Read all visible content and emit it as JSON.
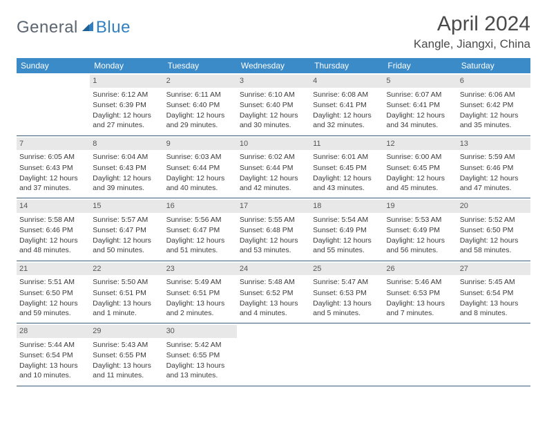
{
  "brand": {
    "part1": "General",
    "part2": "Blue"
  },
  "title": "April 2024",
  "location": "Kangle, Jiangxi, China",
  "colors": {
    "header_bg": "#3b8bc9",
    "daynum_bg": "#e8e8e8",
    "week_border": "#3b5a78",
    "text": "#3a3a3a",
    "logo_gray": "#5a6570",
    "logo_blue": "#2f7fc2"
  },
  "dow": [
    "Sunday",
    "Monday",
    "Tuesday",
    "Wednesday",
    "Thursday",
    "Friday",
    "Saturday"
  ],
  "weeks": [
    [
      {
        "n": "",
        "sr": "",
        "ss": "",
        "dl": ""
      },
      {
        "n": "1",
        "sr": "Sunrise: 6:12 AM",
        "ss": "Sunset: 6:39 PM",
        "dl": "Daylight: 12 hours and 27 minutes."
      },
      {
        "n": "2",
        "sr": "Sunrise: 6:11 AM",
        "ss": "Sunset: 6:40 PM",
        "dl": "Daylight: 12 hours and 29 minutes."
      },
      {
        "n": "3",
        "sr": "Sunrise: 6:10 AM",
        "ss": "Sunset: 6:40 PM",
        "dl": "Daylight: 12 hours and 30 minutes."
      },
      {
        "n": "4",
        "sr": "Sunrise: 6:08 AM",
        "ss": "Sunset: 6:41 PM",
        "dl": "Daylight: 12 hours and 32 minutes."
      },
      {
        "n": "5",
        "sr": "Sunrise: 6:07 AM",
        "ss": "Sunset: 6:41 PM",
        "dl": "Daylight: 12 hours and 34 minutes."
      },
      {
        "n": "6",
        "sr": "Sunrise: 6:06 AM",
        "ss": "Sunset: 6:42 PM",
        "dl": "Daylight: 12 hours and 35 minutes."
      }
    ],
    [
      {
        "n": "7",
        "sr": "Sunrise: 6:05 AM",
        "ss": "Sunset: 6:43 PM",
        "dl": "Daylight: 12 hours and 37 minutes."
      },
      {
        "n": "8",
        "sr": "Sunrise: 6:04 AM",
        "ss": "Sunset: 6:43 PM",
        "dl": "Daylight: 12 hours and 39 minutes."
      },
      {
        "n": "9",
        "sr": "Sunrise: 6:03 AM",
        "ss": "Sunset: 6:44 PM",
        "dl": "Daylight: 12 hours and 40 minutes."
      },
      {
        "n": "10",
        "sr": "Sunrise: 6:02 AM",
        "ss": "Sunset: 6:44 PM",
        "dl": "Daylight: 12 hours and 42 minutes."
      },
      {
        "n": "11",
        "sr": "Sunrise: 6:01 AM",
        "ss": "Sunset: 6:45 PM",
        "dl": "Daylight: 12 hours and 43 minutes."
      },
      {
        "n": "12",
        "sr": "Sunrise: 6:00 AM",
        "ss": "Sunset: 6:45 PM",
        "dl": "Daylight: 12 hours and 45 minutes."
      },
      {
        "n": "13",
        "sr": "Sunrise: 5:59 AM",
        "ss": "Sunset: 6:46 PM",
        "dl": "Daylight: 12 hours and 47 minutes."
      }
    ],
    [
      {
        "n": "14",
        "sr": "Sunrise: 5:58 AM",
        "ss": "Sunset: 6:46 PM",
        "dl": "Daylight: 12 hours and 48 minutes."
      },
      {
        "n": "15",
        "sr": "Sunrise: 5:57 AM",
        "ss": "Sunset: 6:47 PM",
        "dl": "Daylight: 12 hours and 50 minutes."
      },
      {
        "n": "16",
        "sr": "Sunrise: 5:56 AM",
        "ss": "Sunset: 6:47 PM",
        "dl": "Daylight: 12 hours and 51 minutes."
      },
      {
        "n": "17",
        "sr": "Sunrise: 5:55 AM",
        "ss": "Sunset: 6:48 PM",
        "dl": "Daylight: 12 hours and 53 minutes."
      },
      {
        "n": "18",
        "sr": "Sunrise: 5:54 AM",
        "ss": "Sunset: 6:49 PM",
        "dl": "Daylight: 12 hours and 55 minutes."
      },
      {
        "n": "19",
        "sr": "Sunrise: 5:53 AM",
        "ss": "Sunset: 6:49 PM",
        "dl": "Daylight: 12 hours and 56 minutes."
      },
      {
        "n": "20",
        "sr": "Sunrise: 5:52 AM",
        "ss": "Sunset: 6:50 PM",
        "dl": "Daylight: 12 hours and 58 minutes."
      }
    ],
    [
      {
        "n": "21",
        "sr": "Sunrise: 5:51 AM",
        "ss": "Sunset: 6:50 PM",
        "dl": "Daylight: 12 hours and 59 minutes."
      },
      {
        "n": "22",
        "sr": "Sunrise: 5:50 AM",
        "ss": "Sunset: 6:51 PM",
        "dl": "Daylight: 13 hours and 1 minute."
      },
      {
        "n": "23",
        "sr": "Sunrise: 5:49 AM",
        "ss": "Sunset: 6:51 PM",
        "dl": "Daylight: 13 hours and 2 minutes."
      },
      {
        "n": "24",
        "sr": "Sunrise: 5:48 AM",
        "ss": "Sunset: 6:52 PM",
        "dl": "Daylight: 13 hours and 4 minutes."
      },
      {
        "n": "25",
        "sr": "Sunrise: 5:47 AM",
        "ss": "Sunset: 6:53 PM",
        "dl": "Daylight: 13 hours and 5 minutes."
      },
      {
        "n": "26",
        "sr": "Sunrise: 5:46 AM",
        "ss": "Sunset: 6:53 PM",
        "dl": "Daylight: 13 hours and 7 minutes."
      },
      {
        "n": "27",
        "sr": "Sunrise: 5:45 AM",
        "ss": "Sunset: 6:54 PM",
        "dl": "Daylight: 13 hours and 8 minutes."
      }
    ],
    [
      {
        "n": "28",
        "sr": "Sunrise: 5:44 AM",
        "ss": "Sunset: 6:54 PM",
        "dl": "Daylight: 13 hours and 10 minutes."
      },
      {
        "n": "29",
        "sr": "Sunrise: 5:43 AM",
        "ss": "Sunset: 6:55 PM",
        "dl": "Daylight: 13 hours and 11 minutes."
      },
      {
        "n": "30",
        "sr": "Sunrise: 5:42 AM",
        "ss": "Sunset: 6:55 PM",
        "dl": "Daylight: 13 hours and 13 minutes."
      },
      {
        "n": "",
        "sr": "",
        "ss": "",
        "dl": ""
      },
      {
        "n": "",
        "sr": "",
        "ss": "",
        "dl": ""
      },
      {
        "n": "",
        "sr": "",
        "ss": "",
        "dl": ""
      },
      {
        "n": "",
        "sr": "",
        "ss": "",
        "dl": ""
      }
    ]
  ]
}
